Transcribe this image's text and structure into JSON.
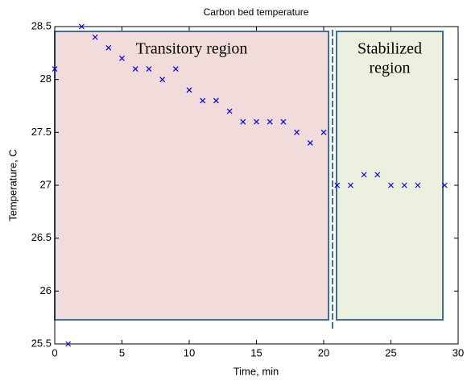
{
  "chart_data": {
    "type": "scatter",
    "title": "Carbon bed temperature",
    "x_label": "Time, min",
    "y_label": "Temperature, C",
    "annotations": [
      {
        "lines": [
          "Transitory region"
        ]
      },
      {
        "lines": [
          "Stabilized",
          "region"
        ]
      }
    ],
    "series": [
      {
        "color": "#0000ff",
        "x": [
          0,
          1,
          2,
          3,
          4,
          5,
          6,
          7,
          8,
          9,
          10,
          11,
          12,
          13,
          14,
          15,
          16,
          17,
          18,
          19,
          20,
          21,
          22,
          23,
          24,
          25,
          26,
          27,
          29
        ],
        "values": [
          28.1,
          25.5,
          28.5,
          28.4,
          28.3,
          28.2,
          28.1,
          28.1,
          28.0,
          28.1,
          27.9,
          27.8,
          27.8,
          27.7,
          27.6,
          27.6,
          27.6,
          27.6,
          27.5,
          27.4,
          27.5,
          27.0,
          27.0,
          27.1,
          27.1,
          27.0,
          27.0,
          27.0,
          27.0
        ]
      }
    ],
    "xlim": [
      0,
      30
    ],
    "xticks": [
      0,
      5,
      10,
      15,
      20,
      25,
      30
    ],
    "ylim": [
      25.5,
      28.5
    ],
    "yticks": [
      25.5,
      26,
      26.5,
      27,
      27.5,
      28,
      28.5
    ]
  }
}
